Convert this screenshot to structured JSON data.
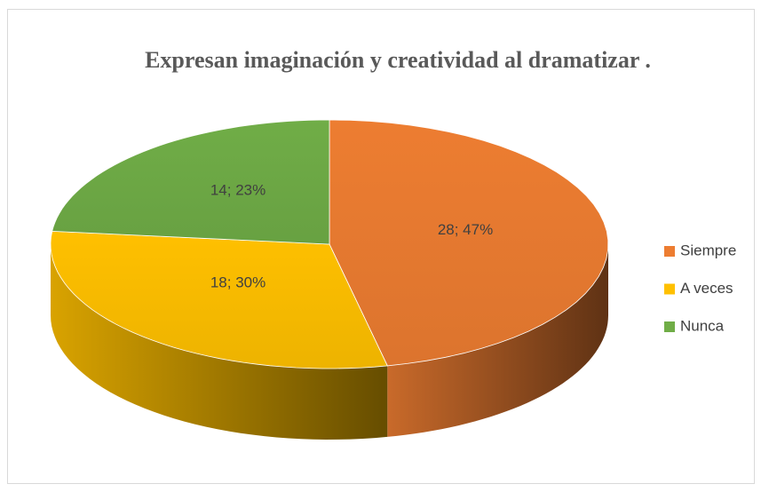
{
  "chart_data": {
    "type": "pie3d",
    "title": "Expresan imaginación y creatividad al dramatizar .",
    "categories": [
      "Siempre",
      "A veces",
      "Nunca"
    ],
    "values": [
      28,
      18,
      14
    ],
    "value_labels": [
      "28; 47%",
      "18; 30%",
      "14; 23%"
    ],
    "colors": [
      "#ed7d31",
      "#ffc000",
      "#70ad47"
    ],
    "legend": "right"
  }
}
